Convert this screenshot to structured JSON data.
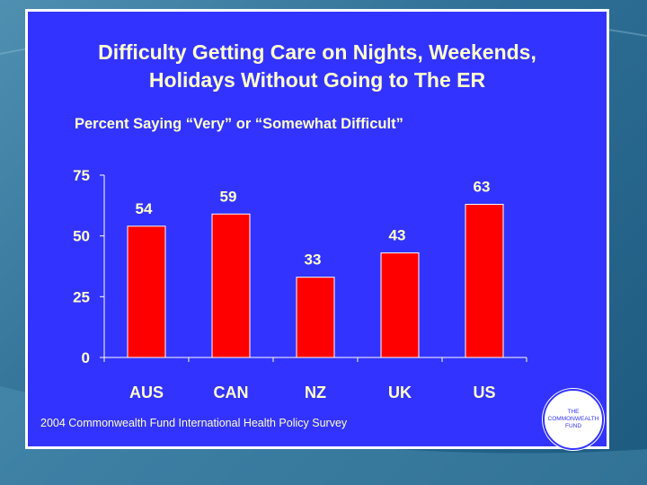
{
  "slide": {
    "title_line1": "Difficulty Getting Care on Nights, Weekends,",
    "title_line2": "Holidays Without Going to The ER",
    "subtitle": "Percent Saying “Very” or “Somewhat Difficult”",
    "footer": "2004 Commonwealth Fund International Health Policy Survey",
    "logo_text": [
      "THE",
      "COMMONWEALTH",
      "FUND"
    ]
  },
  "colors": {
    "slide_background": "#3333ff",
    "bar_fill": "#ff0000",
    "text": "#ffffcc",
    "outer_background": "#2f6f96"
  },
  "chart_data": {
    "type": "bar",
    "categories": [
      "AUS",
      "CAN",
      "NZ",
      "UK",
      "US"
    ],
    "values": [
      54,
      59,
      33,
      43,
      63
    ],
    "ylim": [
      0,
      75
    ],
    "yticks": [
      0,
      25,
      50,
      75
    ],
    "title": "Difficulty Getting Care on Nights, Weekends, Holidays Without Going to The ER",
    "ylabel": "",
    "xlabel": "",
    "grid": false,
    "legend": false
  }
}
